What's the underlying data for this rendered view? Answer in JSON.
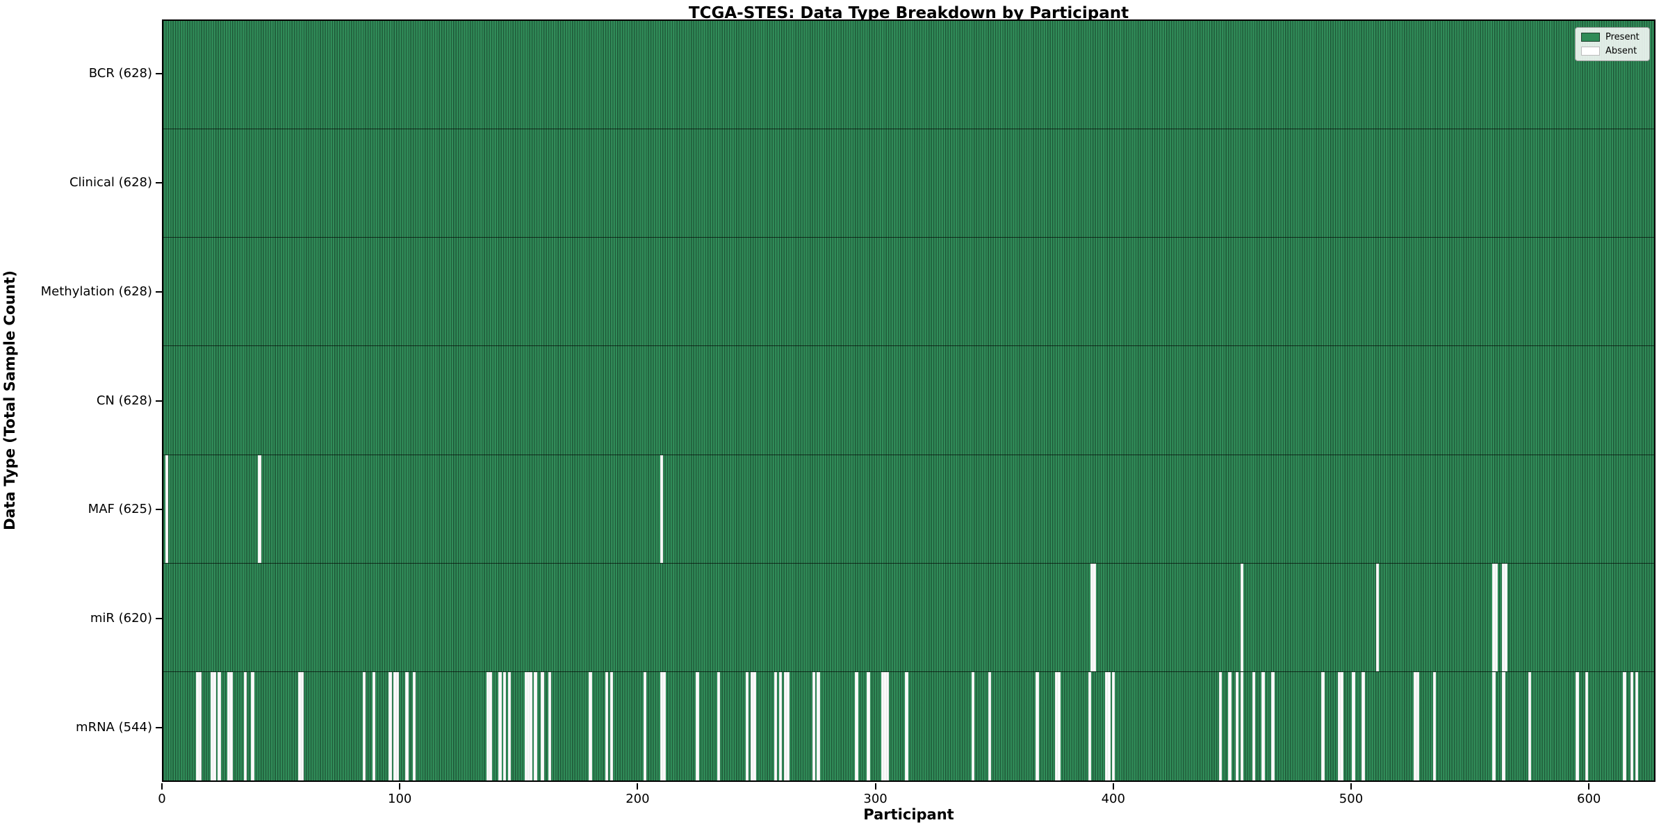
{
  "chart_data": {
    "type": "heatmap",
    "title": "TCGA-STES: Data Type Breakdown by Participant",
    "xlabel": "Participant",
    "ylabel": "Data Type (Total Sample Count)",
    "x_ticks": [
      "0",
      "100",
      "200",
      "300",
      "400",
      "500",
      "600"
    ],
    "x_tick_values": [
      0,
      100,
      200,
      300,
      400,
      500,
      600
    ],
    "n_participants": 628,
    "xlim": [
      0,
      628
    ],
    "grid": false,
    "legend_position": "upper right",
    "colors": {
      "present": "#2e8b57",
      "absent": "#ffffff",
      "bar_edge": "#1c3f2b"
    },
    "legend": [
      {
        "label": "Present",
        "color": "#2e8b57"
      },
      {
        "label": "Absent",
        "color": "#ffffff"
      }
    ],
    "rows": [
      {
        "label": "BCR (628)",
        "name": "BCR",
        "present_count": 628,
        "absent_indices": []
      },
      {
        "label": "Clinical (628)",
        "name": "Clinical",
        "present_count": 628,
        "absent_indices": []
      },
      {
        "label": "Methylation (628)",
        "name": "Methylation",
        "present_count": 628,
        "absent_indices": []
      },
      {
        "label": "CN (628)",
        "name": "CN",
        "present_count": 628,
        "absent_indices": []
      },
      {
        "label": "MAF (625)",
        "name": "MAF",
        "present_count": 625,
        "absent_indices": [
          1,
          40,
          209
        ]
      },
      {
        "label": "miR (620)",
        "name": "miR",
        "present_count": 620,
        "absent_indices": [
          390,
          391,
          453,
          510,
          559,
          560,
          563,
          564
        ]
      },
      {
        "label": "mRNA (544)",
        "name": "mRNA",
        "present_count": 544,
        "absent_indices": [
          14,
          15,
          20,
          21,
          23,
          27,
          28,
          34,
          37,
          57,
          58,
          84,
          88,
          95,
          97,
          98,
          102,
          105,
          136,
          137,
          141,
          143,
          145,
          152,
          153,
          154,
          156,
          159,
          162,
          179,
          186,
          188,
          202,
          209,
          210,
          224,
          233,
          245,
          247,
          248,
          257,
          259,
          261,
          262,
          273,
          275,
          291,
          296,
          302,
          303,
          304,
          312,
          340,
          347,
          367,
          375,
          376,
          389,
          396,
          397,
          399,
          444,
          448,
          451,
          453,
          458,
          462,
          466,
          487,
          494,
          495,
          500,
          504,
          526,
          527,
          534,
          559,
          563,
          574,
          594,
          598,
          614,
          617,
          619
        ]
      }
    ]
  }
}
